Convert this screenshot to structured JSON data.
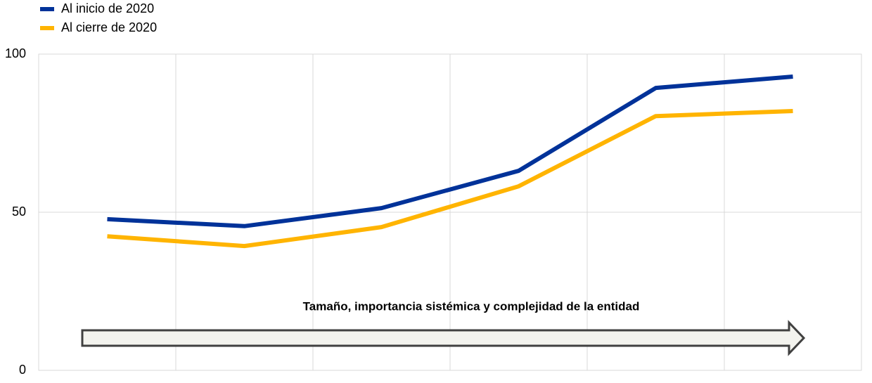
{
  "chart_data": {
    "type": "line",
    "categories": [
      null,
      null,
      null,
      null,
      null,
      null
    ],
    "series": [
      {
        "name": "Al inicio de 2020",
        "color": "#003299",
        "values": [
          47.8,
          45.6,
          51.3,
          63.1,
          89.3,
          92.9
        ]
      },
      {
        "name": "Al cierre de 2020",
        "color": "#ffb400",
        "values": [
          42.4,
          39.3,
          45.3,
          58.2,
          80.4,
          82.0
        ]
      }
    ],
    "annotation": "Tamaño, importancia sistémica y complejidad de la entidad",
    "ylim": [
      0,
      100
    ],
    "yticks": [
      0,
      50,
      100
    ],
    "grid": true,
    "legend": "top-left"
  }
}
